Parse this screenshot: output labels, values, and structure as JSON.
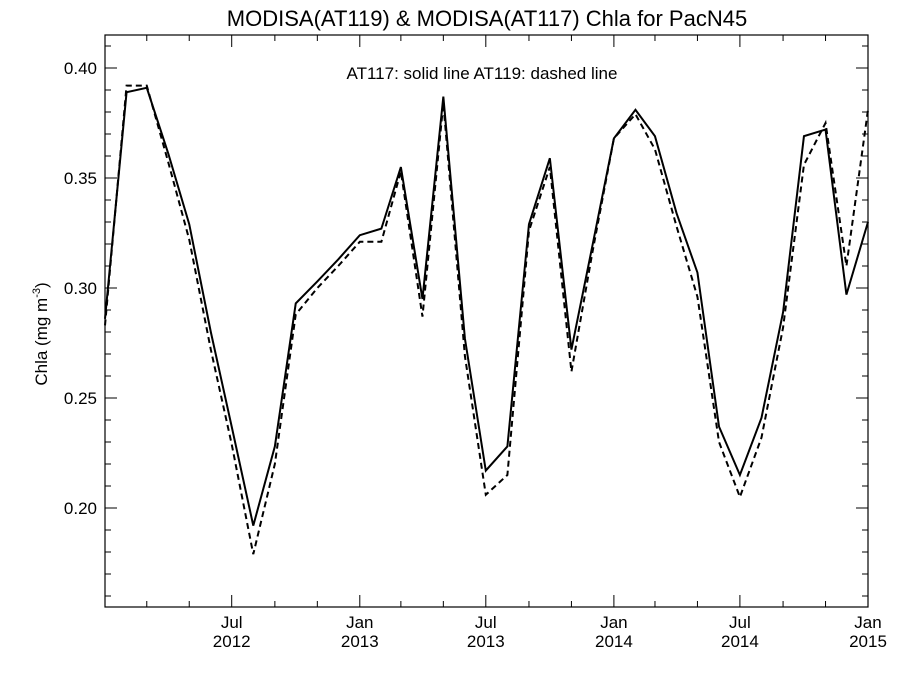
{
  "chart_data": {
    "type": "line",
    "title": "MODISA(AT119) & MODISA(AT117)  Chla for PacN45",
    "annotation": "AT117: solid line   AT119: dashed line",
    "ylabel_main": "Chla (mg m",
    "ylabel_sup": "-3",
    "ylabel_end": ")",
    "xlabel": "",
    "xlim": [
      "2012-01-01",
      "2015-01-01"
    ],
    "ylim": [
      0.155,
      0.415
    ],
    "y_ticks": [
      {
        "value": 0.2,
        "label": "0.20"
      },
      {
        "value": 0.25,
        "label": "0.25"
      },
      {
        "value": 0.3,
        "label": "0.30"
      },
      {
        "value": 0.35,
        "label": "0.35"
      },
      {
        "value": 0.4,
        "label": "0.40"
      }
    ],
    "x_ticks": [
      {
        "date": "2012-07-01",
        "line1": "Jul",
        "line2": "2012"
      },
      {
        "date": "2013-01-01",
        "line1": "Jan",
        "line2": "2013"
      },
      {
        "date": "2013-07-01",
        "line1": "Jul",
        "line2": "2013"
      },
      {
        "date": "2014-01-01",
        "line1": "Jan",
        "line2": "2014"
      },
      {
        "date": "2014-07-01",
        "line1": "Jul",
        "line2": "2014"
      },
      {
        "date": "2015-01-01",
        "line1": "Jan",
        "line2": "2015"
      }
    ],
    "grid": false,
    "series": [
      {
        "key": "AT117",
        "style": "solid",
        "color": "#000000",
        "points": [
          [
            "2012-01-01",
            0.286
          ],
          [
            "2012-02-01",
            0.389
          ],
          [
            "2012-03-01",
            0.391
          ],
          [
            "2012-04-01",
            0.361
          ],
          [
            "2012-05-01",
            0.329
          ],
          [
            "2012-06-01",
            0.28
          ],
          [
            "2012-07-01",
            0.237
          ],
          [
            "2012-08-01",
            0.192
          ],
          [
            "2012-09-01",
            0.228
          ],
          [
            "2012-10-01",
            0.293
          ],
          [
            "2012-11-01",
            0.303
          ],
          [
            "2012-12-01",
            0.313
          ],
          [
            "2013-01-01",
            0.324
          ],
          [
            "2013-02-01",
            0.327
          ],
          [
            "2013-03-01",
            0.355
          ],
          [
            "2013-04-01",
            0.295
          ],
          [
            "2013-05-01",
            0.387
          ],
          [
            "2013-06-01",
            0.277
          ],
          [
            "2013-07-01",
            0.217
          ],
          [
            "2013-08-01",
            0.228
          ],
          [
            "2013-09-01",
            0.329
          ],
          [
            "2013-10-01",
            0.359
          ],
          [
            "2013-11-01",
            0.272
          ],
          [
            "2013-12-01",
            0.319
          ],
          [
            "2014-01-01",
            0.368
          ],
          [
            "2014-02-01",
            0.381
          ],
          [
            "2014-03-01",
            0.369
          ],
          [
            "2014-04-01",
            0.334
          ],
          [
            "2014-05-01",
            0.307
          ],
          [
            "2014-06-01",
            0.237
          ],
          [
            "2014-07-01",
            0.215
          ],
          [
            "2014-08-01",
            0.241
          ],
          [
            "2014-09-01",
            0.289
          ],
          [
            "2014-10-01",
            0.369
          ],
          [
            "2014-11-01",
            0.372
          ],
          [
            "2014-12-01",
            0.297
          ],
          [
            "2015-01-01",
            0.33
          ]
        ]
      },
      {
        "key": "AT119",
        "style": "dashed",
        "color": "#000000",
        "points": [
          [
            "2012-01-01",
            0.283
          ],
          [
            "2012-02-01",
            0.392
          ],
          [
            "2012-03-01",
            0.392
          ],
          [
            "2012-04-01",
            0.357
          ],
          [
            "2012-05-01",
            0.322
          ],
          [
            "2012-06-01",
            0.272
          ],
          [
            "2012-07-01",
            0.229
          ],
          [
            "2012-08-01",
            0.179
          ],
          [
            "2012-09-01",
            0.22
          ],
          [
            "2012-10-01",
            0.288
          ],
          [
            "2012-11-01",
            0.3
          ],
          [
            "2012-12-01",
            0.31
          ],
          [
            "2013-01-01",
            0.321
          ],
          [
            "2013-02-01",
            0.321
          ],
          [
            "2013-03-01",
            0.353
          ],
          [
            "2013-04-01",
            0.287
          ],
          [
            "2013-05-01",
            0.384
          ],
          [
            "2013-06-01",
            0.269
          ],
          [
            "2013-07-01",
            0.206
          ],
          [
            "2013-08-01",
            0.215
          ],
          [
            "2013-09-01",
            0.326
          ],
          [
            "2013-10-01",
            0.355
          ],
          [
            "2013-11-01",
            0.262
          ],
          [
            "2013-12-01",
            0.316
          ],
          [
            "2014-01-01",
            0.368
          ],
          [
            "2014-02-01",
            0.379
          ],
          [
            "2014-03-01",
            0.363
          ],
          [
            "2014-04-01",
            0.328
          ],
          [
            "2014-05-01",
            0.296
          ],
          [
            "2014-06-01",
            0.23
          ],
          [
            "2014-07-01",
            0.205
          ],
          [
            "2014-08-01",
            0.232
          ],
          [
            "2014-09-01",
            0.282
          ],
          [
            "2014-10-01",
            0.356
          ],
          [
            "2014-11-01",
            0.375
          ],
          [
            "2014-12-01",
            0.31
          ],
          [
            "2015-01-01",
            0.381
          ]
        ]
      }
    ]
  }
}
